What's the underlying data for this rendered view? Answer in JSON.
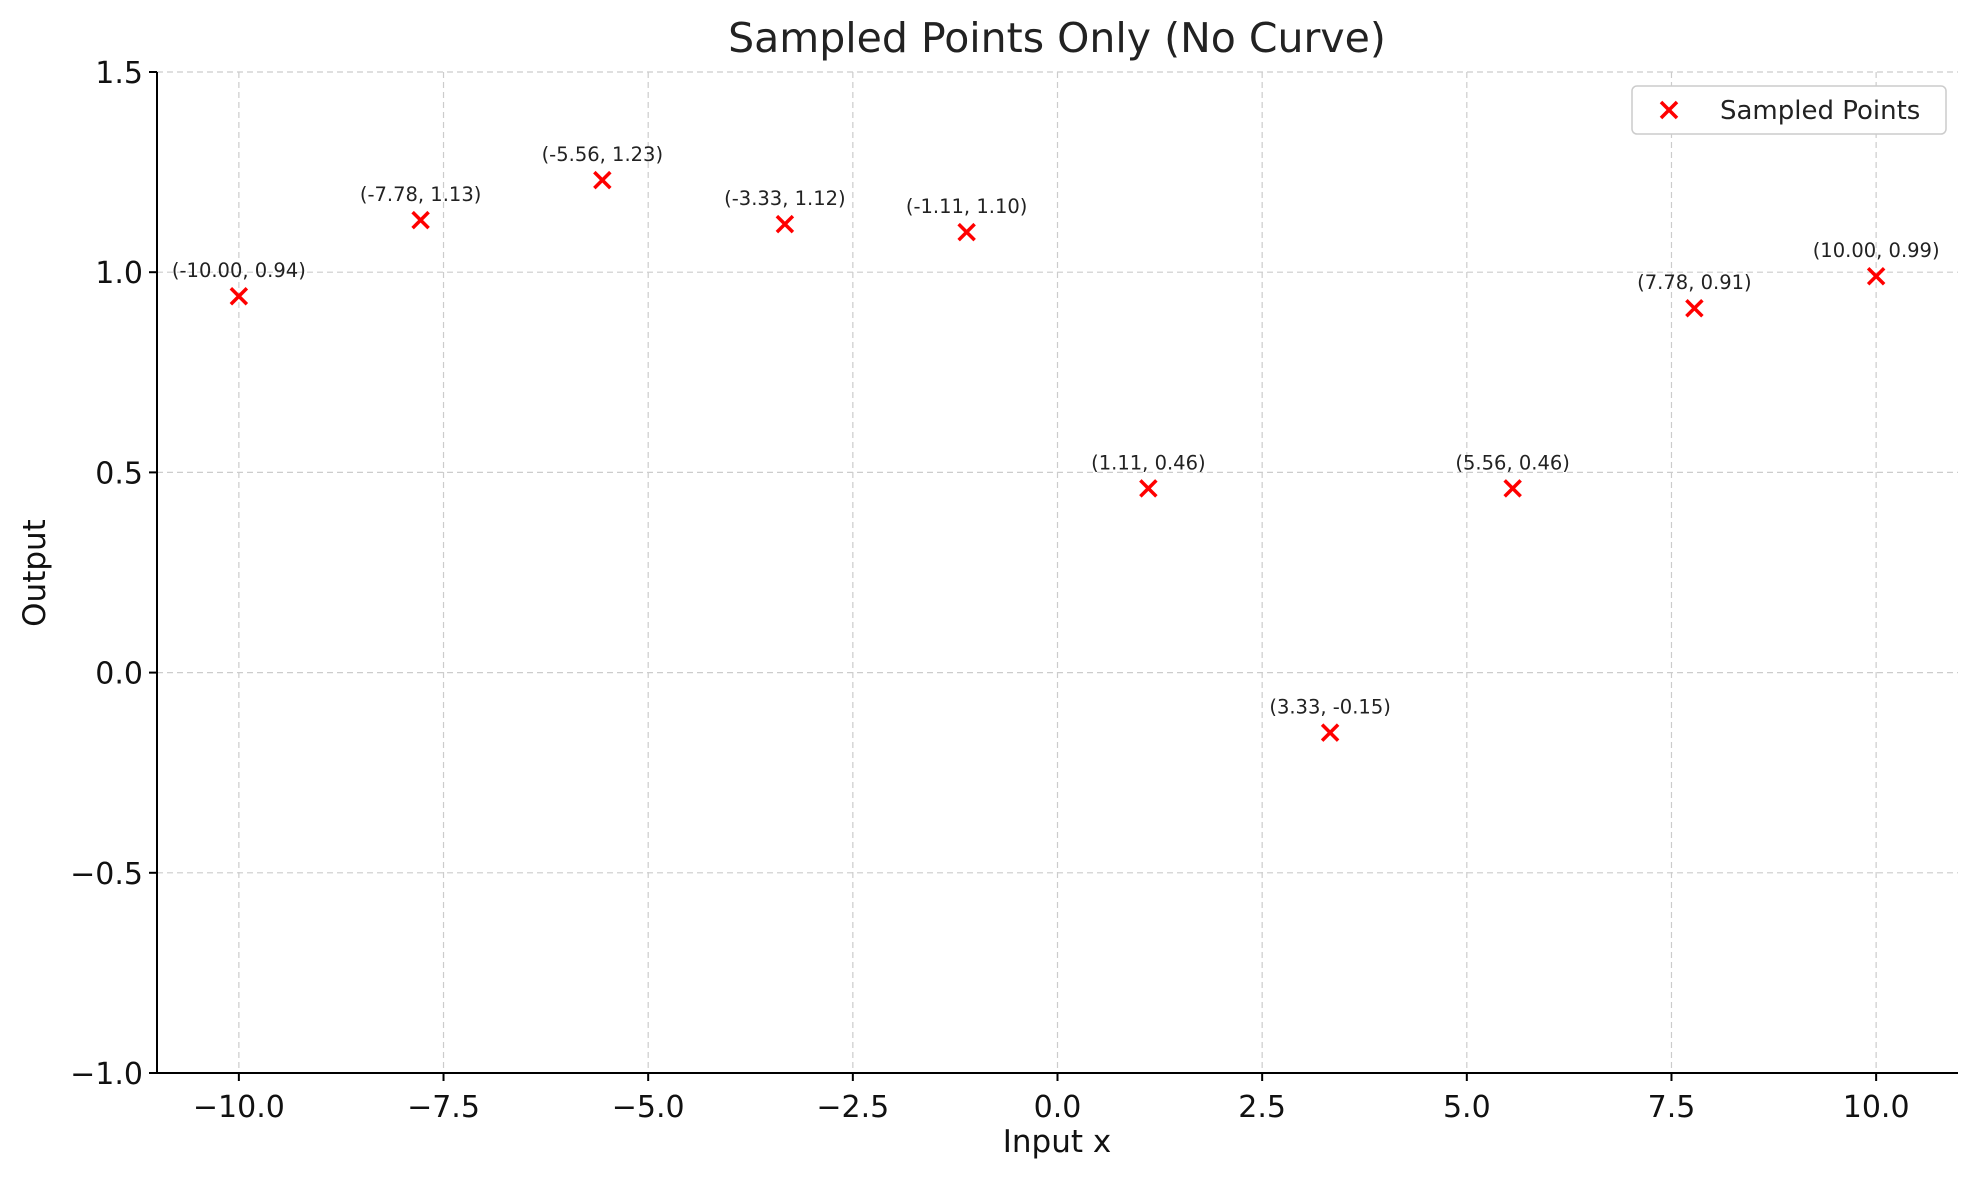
{
  "chart_data": {
    "type": "scatter",
    "title": "Sampled Points Only (No Curve)",
    "xlabel": "Input x",
    "ylabel": "Output",
    "xlim": [
      -11,
      11
    ],
    "ylim": [
      -1.0,
      1.5
    ],
    "x_ticks": [
      -10,
      -7.5,
      -5,
      -2.5,
      0,
      2.5,
      5,
      7.5,
      10
    ],
    "x_tick_labels": [
      "−10.0",
      "−7.5",
      "−5.0",
      "−2.5",
      "0.0",
      "2.5",
      "5.0",
      "7.5",
      "10.0"
    ],
    "y_ticks": [
      -1.0,
      -0.5,
      0.0,
      0.5,
      1.0,
      1.5
    ],
    "y_tick_labels": [
      "−1.0",
      "−0.5",
      "0.0",
      "0.5",
      "1.0",
      "1.5"
    ],
    "grid": true,
    "legend": {
      "position": "top-right",
      "entries": [
        "Sampled Points"
      ]
    },
    "series": [
      {
        "name": "Sampled Points",
        "marker": "x",
        "color": "#ff0000",
        "points": [
          {
            "x": -10.0,
            "y": 0.94,
            "label": "(-10.00, 0.94)"
          },
          {
            "x": -7.78,
            "y": 1.13,
            "label": "(-7.78, 1.13)"
          },
          {
            "x": -5.56,
            "y": 1.23,
            "label": "(-5.56, 1.23)"
          },
          {
            "x": -3.33,
            "y": 1.12,
            "label": "(-3.33, 1.12)"
          },
          {
            "x": -1.11,
            "y": 1.1,
            "label": "(-1.11, 1.10)"
          },
          {
            "x": 1.11,
            "y": 0.46,
            "label": "(1.11, 0.46)"
          },
          {
            "x": 3.33,
            "y": -0.15,
            "label": "(3.33, -0.15)"
          },
          {
            "x": 5.56,
            "y": 0.46,
            "label": "(5.56, 0.46)"
          },
          {
            "x": 7.78,
            "y": 0.91,
            "label": "(7.78, 0.91)"
          },
          {
            "x": 10.0,
            "y": 0.99,
            "label": "(10.00, 0.99)"
          }
        ]
      }
    ]
  }
}
